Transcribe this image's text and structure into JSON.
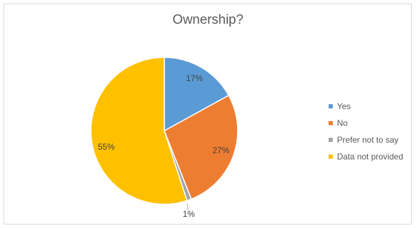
{
  "chart_data": {
    "type": "pie",
    "title": "Ownership?",
    "legend_position": "right",
    "slices": [
      {
        "label": "Yes",
        "value": 17,
        "display": "17%",
        "color": "#5b9bd5"
      },
      {
        "label": "No",
        "value": 27,
        "display": "27%",
        "color": "#ed7d31"
      },
      {
        "label": "Prefer not to say",
        "value": 1,
        "display": "1%",
        "color": "#a5a5a5"
      },
      {
        "label": "Data not provided",
        "value": 55,
        "display": "55%",
        "color": "#ffc000"
      }
    ]
  }
}
